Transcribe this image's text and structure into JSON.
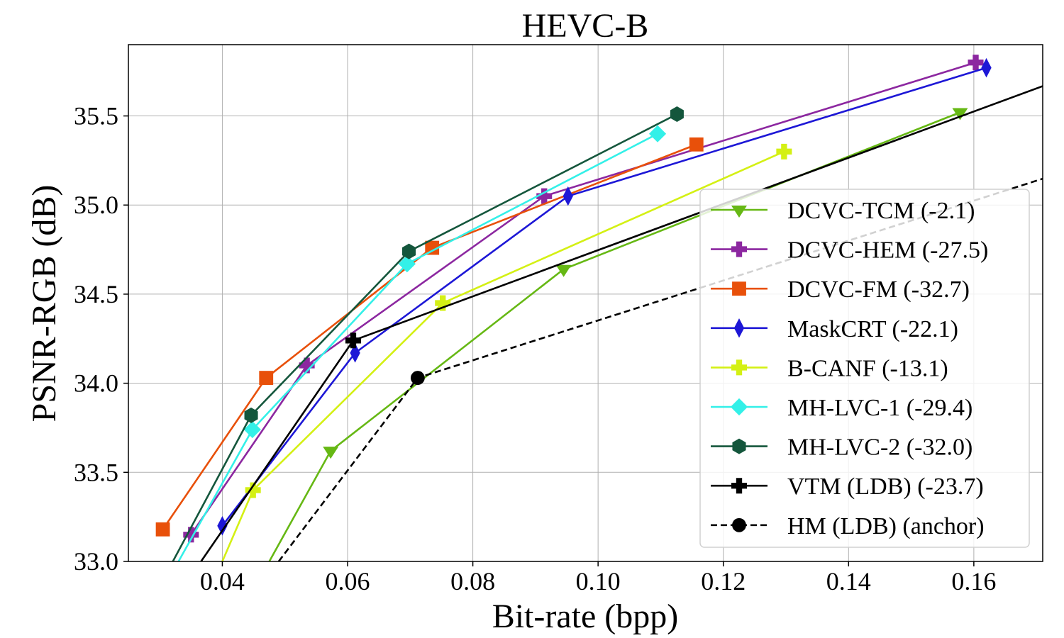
{
  "chart_data": {
    "type": "line",
    "title": "HEVC-B",
    "xlabel": "Bit-rate (bpp)",
    "ylabel": "PSNR-RGB (dB)",
    "xlim": [
      0.025,
      0.171
    ],
    "ylim": [
      33.0,
      35.9
    ],
    "xticks": [
      0.04,
      0.06,
      0.08,
      0.1,
      0.12,
      0.14,
      0.16
    ],
    "xtick_labels": [
      "0.04",
      "0.06",
      "0.08",
      "0.10",
      "0.12",
      "0.14",
      "0.16"
    ],
    "yticks": [
      33.0,
      33.5,
      34.0,
      34.5,
      35.0,
      35.5
    ],
    "ytick_labels": [
      "33.0",
      "33.5",
      "34.0",
      "34.5",
      "35.0",
      "35.5"
    ],
    "grid": true,
    "legend_position": "center-right",
    "series": [
      {
        "name": "DCVC-TCM (-2.1)",
        "color": "#66b814",
        "marker": "triangle-down",
        "dash": "solid",
        "x": [
          0.0475,
          0.0573,
          0.0945,
          0.1578
        ],
        "y": [
          33.0,
          33.62,
          34.64,
          35.52
        ]
      },
      {
        "name": "DCVC-HEM (-27.5)",
        "color": "#8c27a0",
        "marker": "plus",
        "dash": "solid",
        "x": [
          0.035,
          0.0535,
          0.0914,
          0.1603
        ],
        "y": [
          33.15,
          34.1,
          35.05,
          35.8
        ]
      },
      {
        "name": "DCVC-FM (-32.7)",
        "color": "#e8500a",
        "marker": "square",
        "dash": "solid",
        "x": [
          0.0305,
          0.047,
          0.0735,
          0.1157
        ],
        "y": [
          33.18,
          34.03,
          34.76,
          35.34
        ]
      },
      {
        "name": "MaskCRT (-22.1)",
        "color": "#1d17d6",
        "marker": "thin-diamond",
        "dash": "solid",
        "x": [
          0.04,
          0.0612,
          0.0952,
          0.162
        ],
        "y": [
          33.2,
          34.17,
          35.05,
          35.77
        ]
      },
      {
        "name": "B-CANF (-13.1)",
        "color": "#d4f014",
        "marker": "plus",
        "dash": "solid",
        "x": [
          0.04,
          0.0449,
          0.0752,
          0.1297
        ],
        "y": [
          33.0,
          33.4,
          34.45,
          35.3
        ]
      },
      {
        "name": "MH-LVC-1 (-29.4)",
        "color": "#33f0e8",
        "marker": "diamond",
        "dash": "solid",
        "x": [
          0.033,
          0.0448,
          0.0695,
          0.1095
        ],
        "y": [
          33.0,
          33.74,
          34.67,
          35.4
        ]
      },
      {
        "name": "MH-LVC-2 (-32.0)",
        "color": "#14563c",
        "marker": "hexagon",
        "dash": "solid",
        "x": [
          0.0321,
          0.0446,
          0.0698,
          0.1126
        ],
        "y": [
          33.0,
          33.82,
          34.74,
          35.51
        ]
      },
      {
        "name": "VTM (LDB) (-23.7)",
        "color": "#000000",
        "marker": "plus",
        "dash": "solid",
        "x": [
          0.0366,
          0.0609,
          0.1712
        ],
        "y": [
          33.0,
          34.24,
          35.67
        ]
      },
      {
        "name": "HM (LDB) (anchor)",
        "color": "#000000",
        "marker": "circle",
        "dash": "dashed",
        "x": [
          0.049,
          0.0712,
          0.1712
        ],
        "y": [
          33.0,
          34.03,
          35.15
        ]
      }
    ]
  }
}
